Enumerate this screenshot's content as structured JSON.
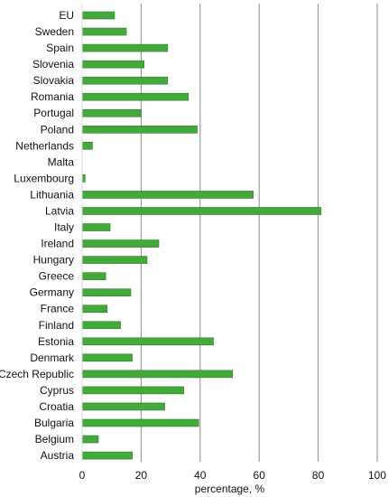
{
  "chart_data": {
    "type": "bar",
    "orientation": "horizontal",
    "categories": [
      "EU",
      "Sweden",
      "Spain",
      "Slovenia",
      "Slovakia",
      "Romania",
      "Portugal",
      "Poland",
      "Netherlands",
      "Malta",
      "Luxembourg",
      "Lithuania",
      "Latvia",
      "Italy",
      "Ireland",
      "Hungary",
      "Greece",
      "Germany",
      "France",
      "Finland",
      "Estonia",
      "Denmark",
      "Czech Republic",
      "Cyprus",
      "Croatia",
      "Bulgaria",
      "Belgium",
      "Austria"
    ],
    "values": [
      11,
      15,
      29,
      21,
      29,
      36,
      20,
      39,
      3.5,
      0,
      1,
      58,
      81,
      9.5,
      26,
      22,
      8,
      16.5,
      8.5,
      13,
      44.5,
      17,
      51,
      34.5,
      28,
      39.5,
      5.5,
      17
    ],
    "xlabel": "percentage, %",
    "ylabel": "",
    "xlim": [
      0,
      100
    ],
    "ticks": [
      "0",
      "20",
      "40",
      "60",
      "80",
      "100"
    ],
    "grid": "vertical",
    "bar_color": "#43a93b",
    "bar_edge_color": "#2e7d2a",
    "grid_color": "#8c8c8c"
  }
}
